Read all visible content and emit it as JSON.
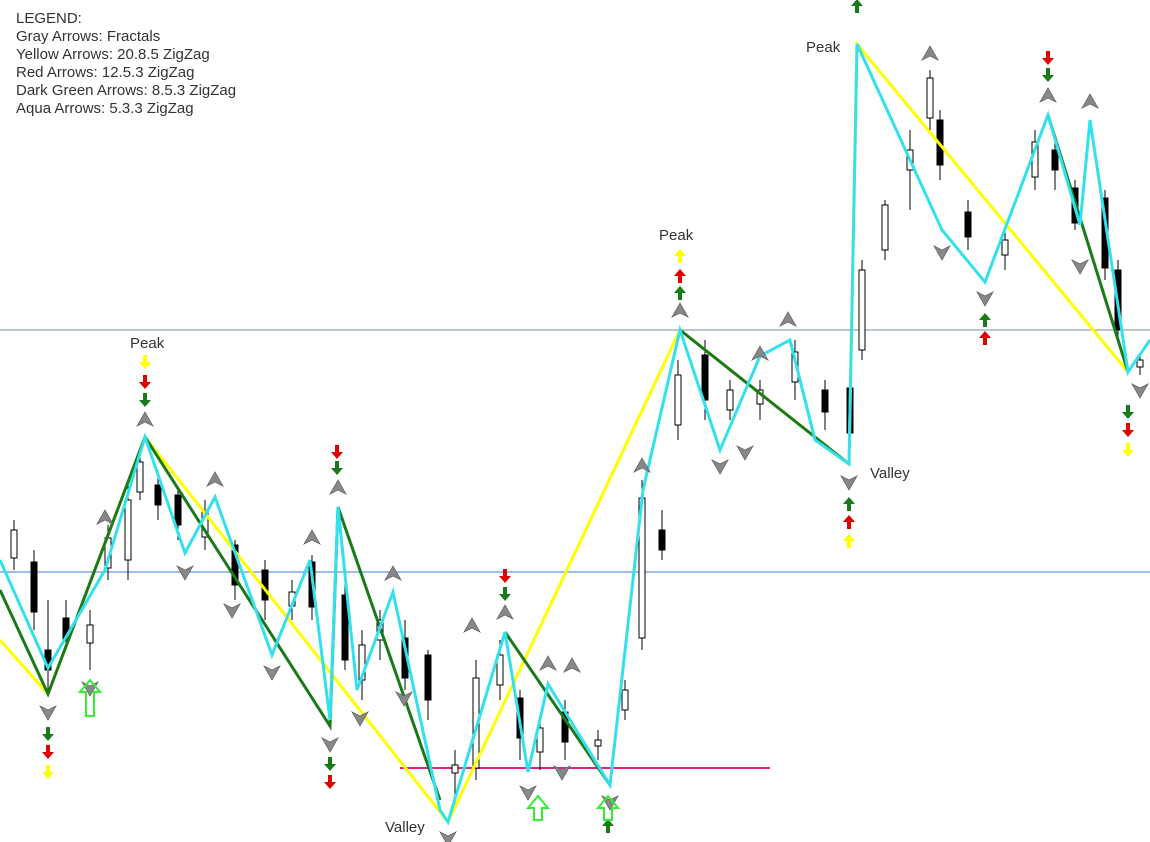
{
  "legend": {
    "title": "LEGEND:",
    "items": [
      "Gray Arrows: Fractals",
      "Yellow Arrows: 20.8.5 ZigZag",
      "Red Arrows: 12.5.3 ZigZag",
      "Dark Green Arrows: 8.5.3 ZigZag",
      "Aqua Arrows: 5.3.3 ZigZag"
    ]
  },
  "annotations": [
    "Peak",
    "Peak",
    "Peak",
    "Valley",
    "Valley"
  ]
}
